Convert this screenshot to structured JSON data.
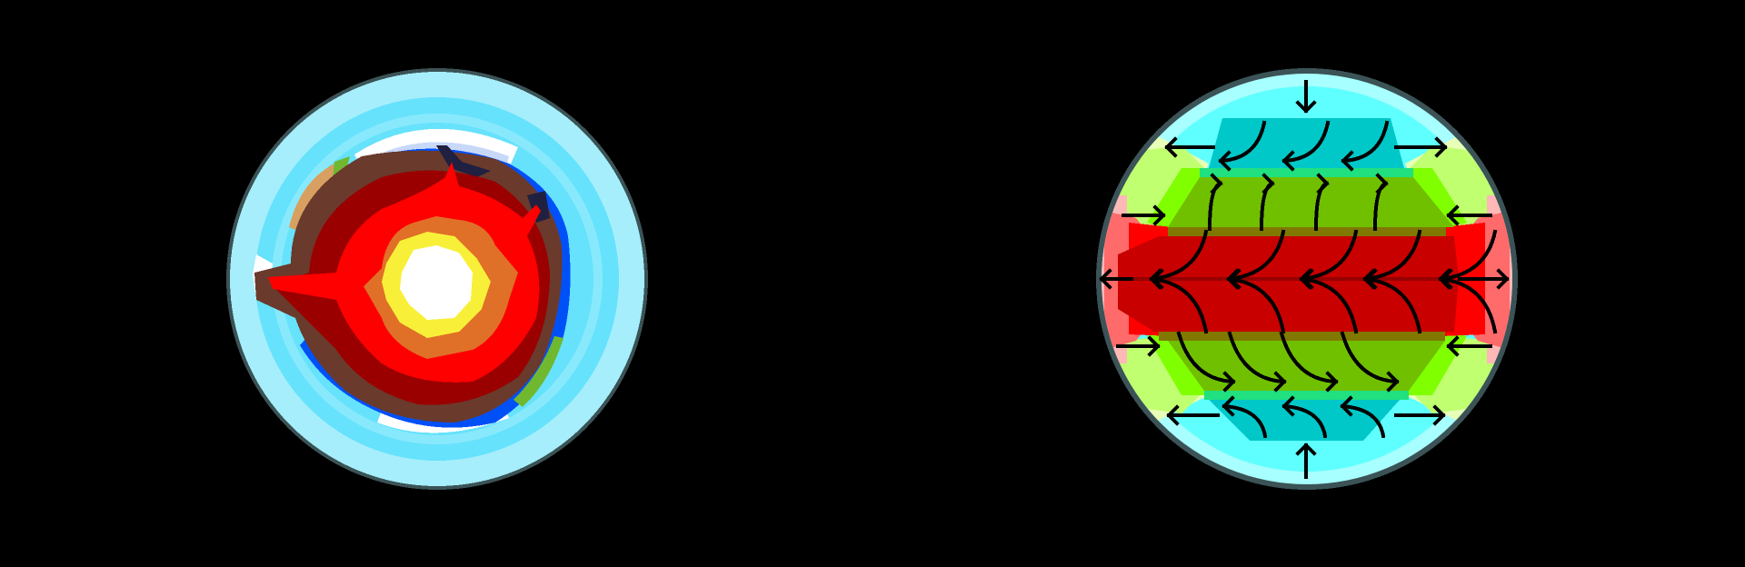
{
  "scene": {
    "background": "#000000",
    "views": [
      {
        "id": "planet-surface-view",
        "kind": "planet-cross-section"
      },
      {
        "id": "planet-wind-view",
        "kind": "planet-atmosphere-circulation"
      }
    ]
  },
  "colors": {
    "rim": "#3b5356",
    "atmo_light": "#a6eefc",
    "atmo": "#66e2fc",
    "ice": "#ffffff",
    "ice_blue": "#c8d8f8",
    "ocean": "#0050f8",
    "grass": "#70b830",
    "sand": "#d8a060",
    "crust": "#6a3a2c",
    "mantle_dark": "#9a0000",
    "mantle": "#ff0000",
    "outer_core": "#e07028",
    "inner_core": "#f8f038",
    "core": "#ffffff",
    "polar_light": "#a8ffff",
    "polar": "#60ffff",
    "polar_cell": "#00c8c8",
    "ferrel_edge": "#20e080",
    "ferrel_cell": "#70c000",
    "boundary": "#807800",
    "hadley_cell": "#c80000",
    "equator_line": "#960000",
    "side_hot": "#ff0000",
    "side_warm": "#ff6a6a",
    "side_pale": "#ffb8b8",
    "diag_green": "#80ff00",
    "diag_light": "#c0ff70",
    "diag_pale": "#e8ffb8",
    "arrow": "#000000"
  }
}
